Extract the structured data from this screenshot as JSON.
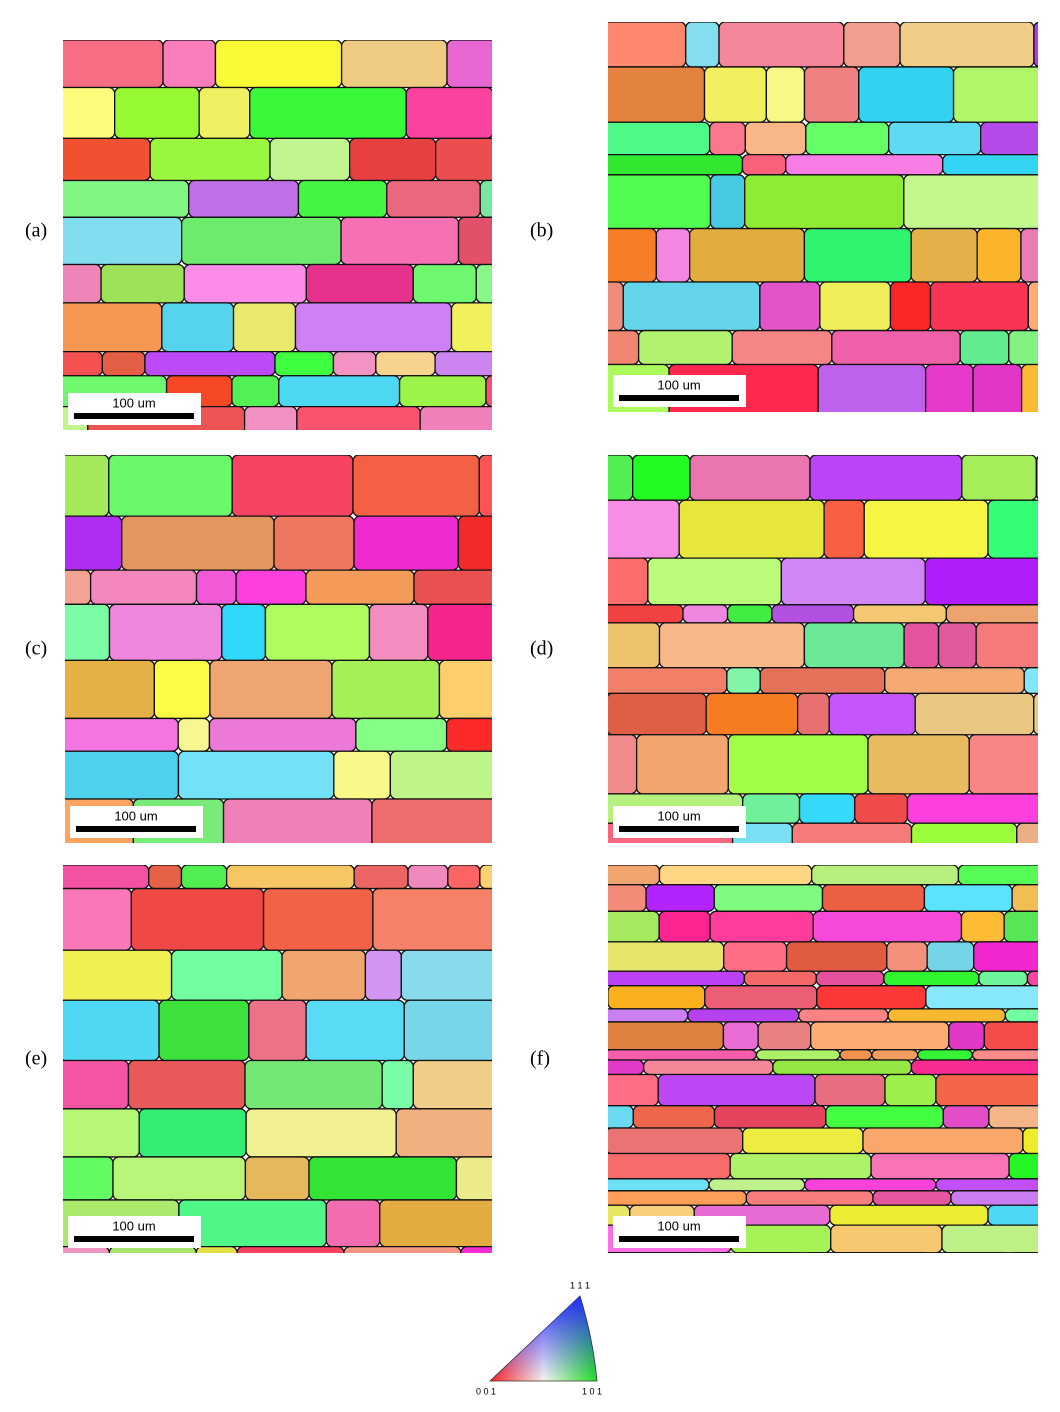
{
  "panels": [
    {
      "label": "(a)",
      "scale_bar": "100 um"
    },
    {
      "label": "(b)",
      "scale_bar": "100 um"
    },
    {
      "label": "(c)",
      "scale_bar": "100 um"
    },
    {
      "label": "(d)",
      "scale_bar": "100 um"
    },
    {
      "label": "(e)",
      "scale_bar": "100 um"
    },
    {
      "label": "(f)",
      "scale_bar": "100 um"
    }
  ],
  "legend": {
    "corner_001": "0 0 1",
    "corner_101": "1 0 1",
    "corner_111": "1 1 1"
  }
}
